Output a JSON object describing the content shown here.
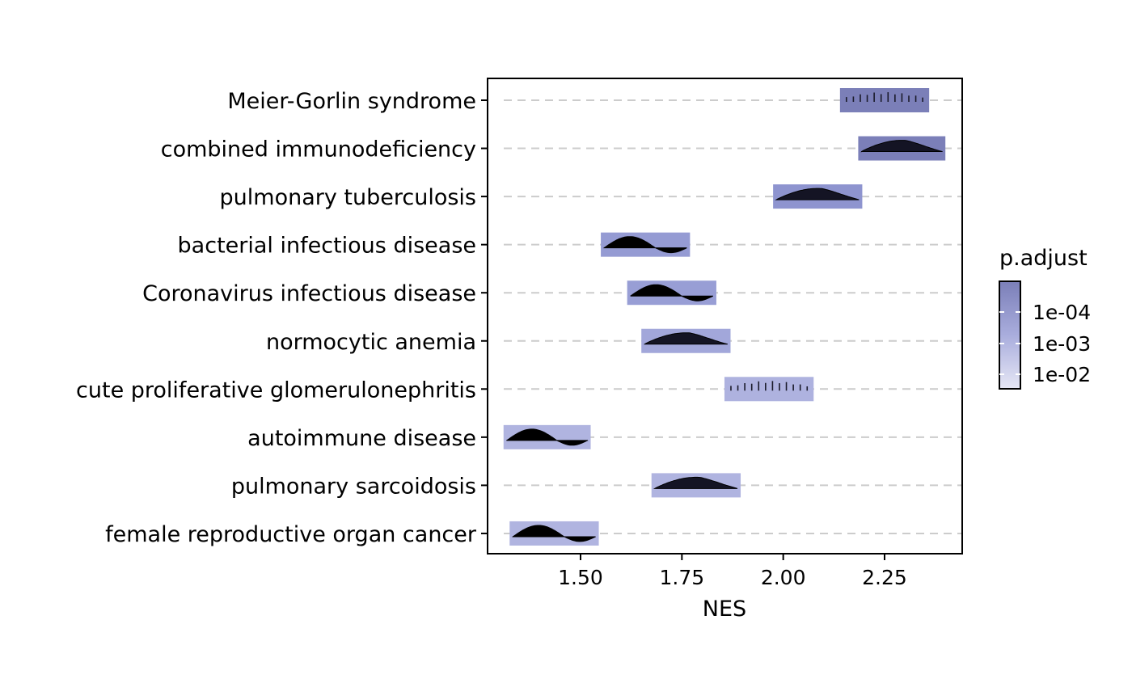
{
  "chart_data": {
    "type": "ridgeline-bar",
    "title": "",
    "xlabel": "NES",
    "ylabel": "",
    "xticks": [
      "1.50",
      "1.75",
      "2.00",
      "2.25"
    ],
    "xlim": [
      1.29,
      2.44
    ],
    "grid": {
      "horizontal_dashed": true,
      "vertical": false
    },
    "categories": [
      "Meier-Gorlin syndrome",
      "combined immunodeficiency",
      "pulmonary tuberculosis",
      "bacterial infectious disease",
      "Coronavirus infectious disease",
      "normocytic anemia",
      "cute proliferative glomerulonephritis",
      "autoimmune disease",
      "pulmonary sarcoidosis",
      "female reproductive organ cancer"
    ],
    "series": [
      {
        "category": "Meier-Gorlin syndrome",
        "nes_min": 2.14,
        "nes_max": 2.36,
        "p_adjust": 1e-05,
        "color": "#7b7fb8",
        "shape": "spikes"
      },
      {
        "category": "combined immunodeficiency",
        "nes_min": 2.185,
        "nes_max": 2.4,
        "p_adjust": 1e-05,
        "color": "#7b7fb8",
        "shape": "hump"
      },
      {
        "category": "pulmonary tuberculosis",
        "nes_min": 1.975,
        "nes_max": 2.195,
        "p_adjust": 0.0003,
        "color": "#8e94cf",
        "shape": "hump"
      },
      {
        "category": "bacterial infectious disease",
        "nes_min": 1.55,
        "nes_max": 1.77,
        "p_adjust": 0.0006,
        "color": "#959bd3",
        "shape": "hump-dip"
      },
      {
        "category": "Coronavirus infectious disease",
        "nes_min": 1.615,
        "nes_max": 1.835,
        "p_adjust": 0.0007,
        "color": "#989ed5",
        "shape": "hump-dip"
      },
      {
        "category": "normocytic anemia",
        "nes_min": 1.65,
        "nes_max": 1.87,
        "p_adjust": 0.001,
        "color": "#a2a7da",
        "shape": "hump"
      },
      {
        "category": "cute proliferative glomerulonephritis",
        "nes_min": 1.855,
        "nes_max": 2.075,
        "p_adjust": 0.003,
        "color": "#aeb2df",
        "shape": "spikes"
      },
      {
        "category": "autoimmune disease",
        "nes_min": 1.31,
        "nes_max": 1.525,
        "p_adjust": 0.003,
        "color": "#b0b4e0",
        "shape": "hump-dip"
      },
      {
        "category": "pulmonary sarcoidosis",
        "nes_min": 1.675,
        "nes_max": 1.895,
        "p_adjust": 0.003,
        "color": "#b0b4e0",
        "shape": "hump"
      },
      {
        "category": "female reproductive organ cancer",
        "nes_min": 1.325,
        "nes_max": 1.545,
        "p_adjust": 0.003,
        "color": "#b0b4e0",
        "shape": "hump-dip"
      }
    ],
    "legend": {
      "title": "p.adjust",
      "placement": "right",
      "labels": [
        "1e-04",
        "1e-03",
        "1e-02"
      ],
      "color_low": "#7b7fb8",
      "color_high": "#e6e7f5"
    }
  }
}
